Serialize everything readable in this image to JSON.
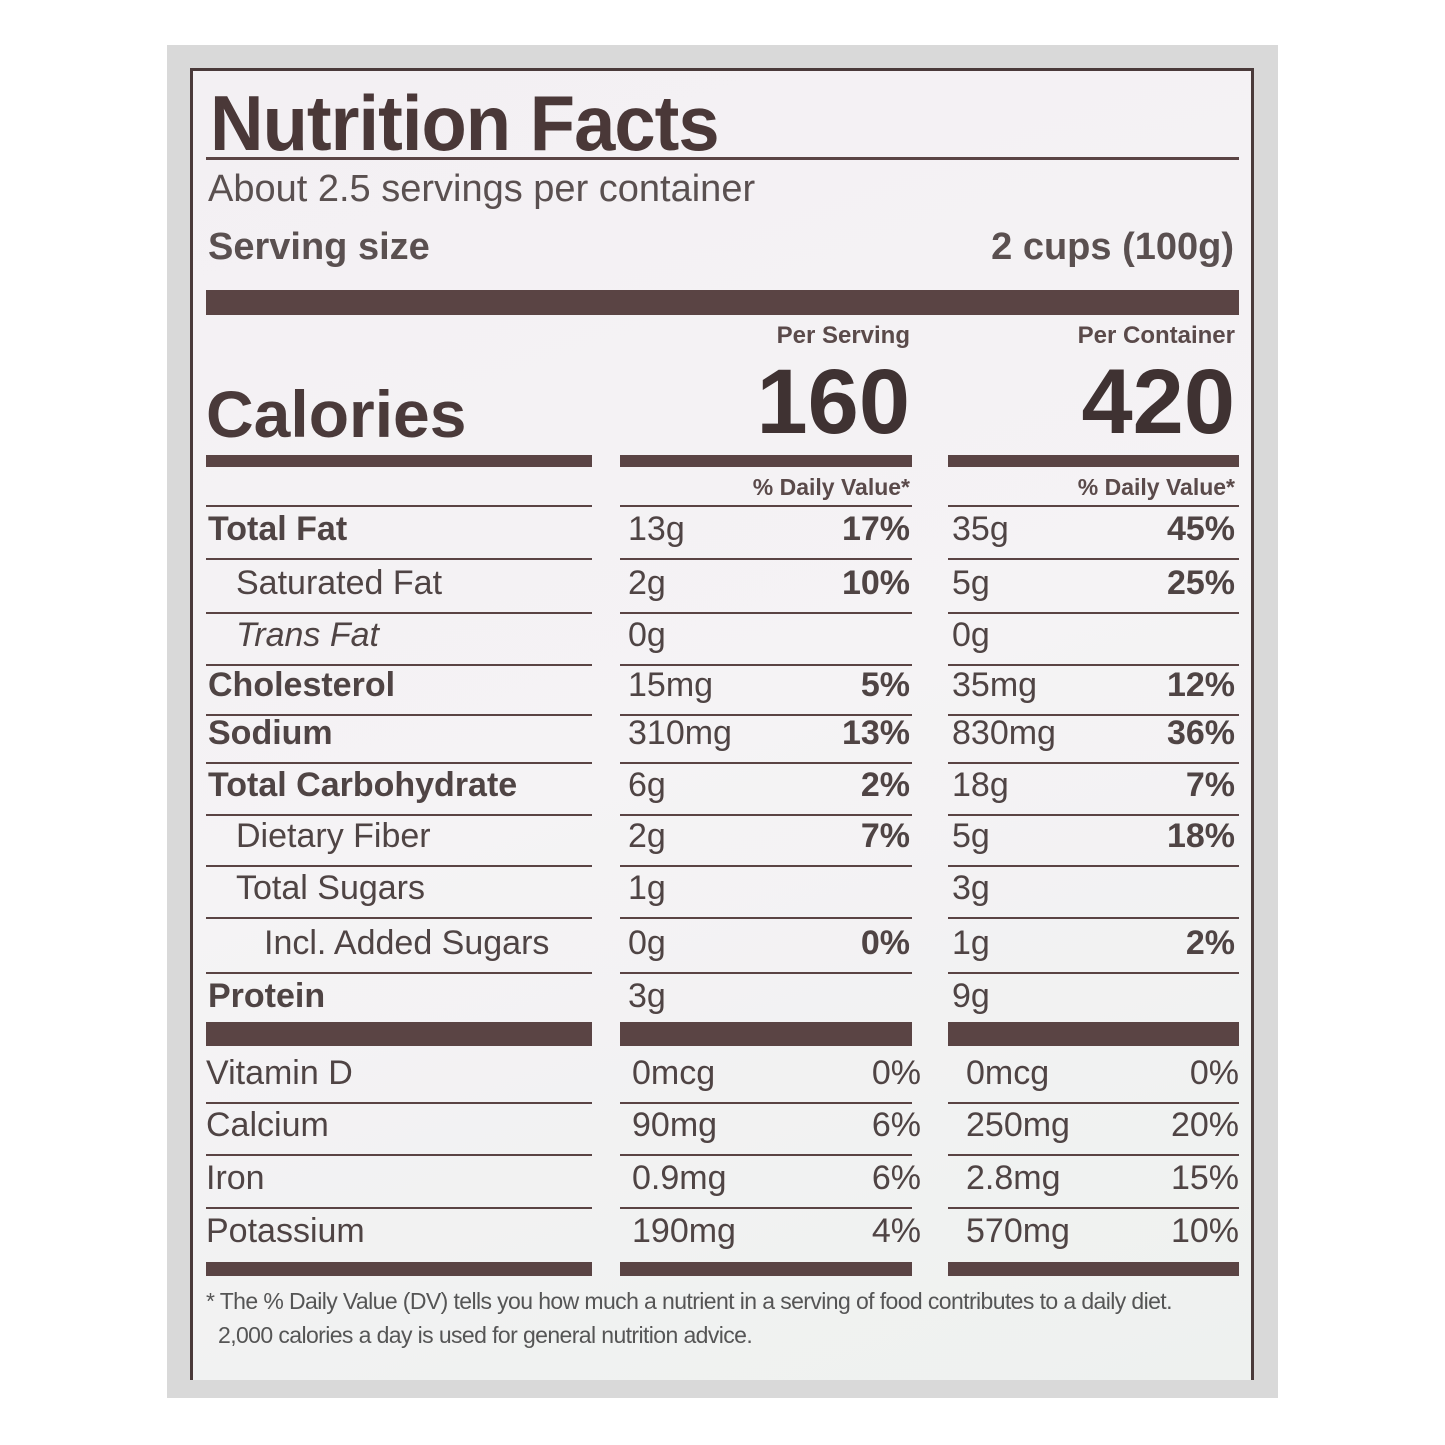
{
  "title": "Nutrition Facts",
  "servings_per_container": "About 2.5 servings per container",
  "serving_size_label": "Serving size",
  "serving_size_value": "2 cups (100g)",
  "columns": {
    "per_serving": "Per Serving",
    "per_container": "Per Container"
  },
  "calories": {
    "label": "Calories",
    "per_serving": "160",
    "per_container": "420"
  },
  "daily_value_header": "% Daily Value*",
  "nutrients": [
    {
      "name": "Total Fat",
      "bold": true,
      "indent": 0,
      "italic": false,
      "s_amt": "13g",
      "s_dv": "17%",
      "c_amt": "35g",
      "c_dv": "45%"
    },
    {
      "name": "Saturated Fat",
      "bold": false,
      "indent": 1,
      "italic": false,
      "s_amt": "2g",
      "s_dv": "10%",
      "c_amt": "5g",
      "c_dv": "25%"
    },
    {
      "name": "Trans Fat",
      "bold": false,
      "indent": 1,
      "italic": true,
      "s_amt": "0g",
      "s_dv": "",
      "c_amt": "0g",
      "c_dv": ""
    },
    {
      "name": "Cholesterol",
      "bold": true,
      "indent": 0,
      "italic": false,
      "s_amt": "15mg",
      "s_dv": "5%",
      "c_amt": "35mg",
      "c_dv": "12%"
    },
    {
      "name": "Sodium",
      "bold": true,
      "indent": 0,
      "italic": false,
      "s_amt": "310mg",
      "s_dv": "13%",
      "c_amt": "830mg",
      "c_dv": "36%"
    },
    {
      "name": "Total Carbohydrate",
      "bold": true,
      "indent": 0,
      "italic": false,
      "s_amt": "6g",
      "s_dv": "2%",
      "c_amt": "18g",
      "c_dv": "7%"
    },
    {
      "name": "Dietary Fiber",
      "bold": false,
      "indent": 1,
      "italic": false,
      "s_amt": "2g",
      "s_dv": "7%",
      "c_amt": "5g",
      "c_dv": "18%"
    },
    {
      "name": "Total Sugars",
      "bold": false,
      "indent": 1,
      "italic": false,
      "s_amt": "1g",
      "s_dv": "",
      "c_amt": "3g",
      "c_dv": ""
    },
    {
      "name": "Incl. Added Sugars",
      "bold": false,
      "indent": 2,
      "italic": false,
      "s_amt": "0g",
      "s_dv": "0%",
      "c_amt": "1g",
      "c_dv": "2%"
    },
    {
      "name": "Protein",
      "bold": true,
      "indent": 0,
      "italic": false,
      "s_amt": "3g",
      "s_dv": "",
      "c_amt": "9g",
      "c_dv": ""
    }
  ],
  "vitamins": [
    {
      "name": "Vitamin D",
      "s_amt": "0mcg",
      "s_dv": "0%",
      "c_amt": "0mcg",
      "c_dv": "0%"
    },
    {
      "name": "Calcium",
      "s_amt": "90mg",
      "s_dv": "6%",
      "c_amt": "250mg",
      "c_dv": "20%"
    },
    {
      "name": "Iron",
      "s_amt": "0.9mg",
      "s_dv": "6%",
      "c_amt": "2.8mg",
      "c_dv": "15%"
    },
    {
      "name": "Potassium",
      "s_amt": "190mg",
      "s_dv": "4%",
      "c_amt": "570mg",
      "c_dv": "10%"
    }
  ],
  "footnote": [
    "* The % Daily Value (DV) tells you how much a nutrient in a serving of food contributes to a daily diet.",
    "2,000 calories a day is used for general nutrition advice."
  ]
}
